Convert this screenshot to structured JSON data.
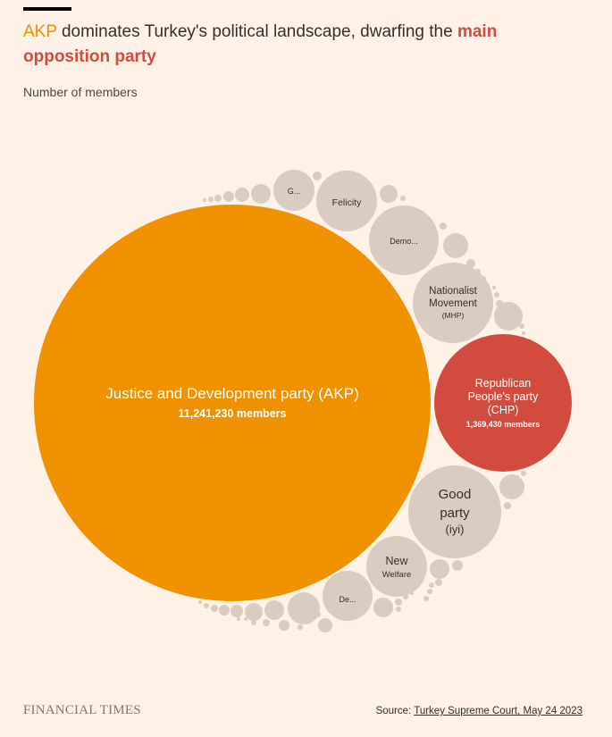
{
  "header": {
    "title_lead": "AKP",
    "title_middle": " dominates Turkey's political landscape, dwarfing the ",
    "title_tail": "main opposition party",
    "subtitle": "Number of members"
  },
  "footer": {
    "brand": "FINANCIAL TIMES",
    "source_label": "Source: ",
    "source_link": "Turkey Supreme Court, May 24 2023"
  },
  "colors": {
    "akp": "#f09100",
    "chp": "#d14c3f",
    "other": "#d9ccc1",
    "background": "#fff1e5"
  },
  "chart_data": {
    "type": "bubble",
    "title": "AKP dominates Turkey's political landscape, dwarfing the main opposition party",
    "ylabel": "Number of members",
    "series": [
      {
        "name": "Justice and Development party (AKP)",
        "value": 11241230,
        "value_label": "11,241,230 members",
        "color": "akp"
      },
      {
        "name": "Republican People's party (CHP)",
        "value": 1369430,
        "value_label": "1,369,430 members",
        "color": "chp"
      },
      {
        "name": "Good party (iyi)",
        "value": 750000,
        "color": "other"
      },
      {
        "name": "Nationalist Movement (MHP)",
        "value": 570000,
        "color": "other"
      },
      {
        "name": "Demo...",
        "value": 440000,
        "color": "other"
      },
      {
        "name": "New Welfare",
        "value": 330000,
        "color": "other"
      },
      {
        "name": "Felicity",
        "value": 320000,
        "color": "other"
      },
      {
        "name": "De...",
        "value": 280000,
        "color": "other"
      },
      {
        "name": "G...",
        "value": 160000,
        "color": "other"
      }
    ],
    "other_parties_unlabeled": true
  }
}
